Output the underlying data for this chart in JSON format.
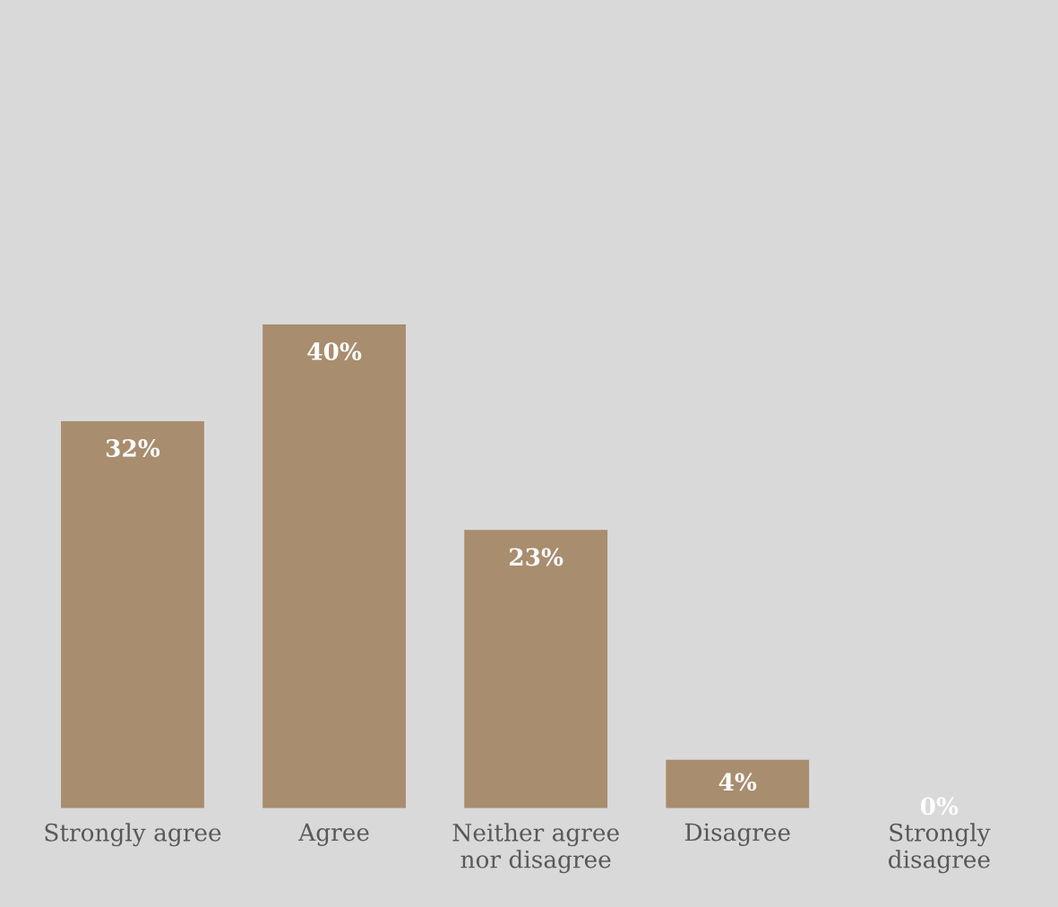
{
  "chart_data": {
    "type": "bar",
    "categories": [
      "Strongly agree",
      "Agree",
      "Neither agree\nnor disagree",
      "Disagree",
      "Strongly\ndisagree"
    ],
    "values": [
      32,
      40,
      23,
      4,
      0
    ],
    "value_labels": [
      "32%",
      "40%",
      "23%",
      "4%",
      "0%"
    ],
    "color": "#a88d6e",
    "grid": false,
    "legend": false
  }
}
